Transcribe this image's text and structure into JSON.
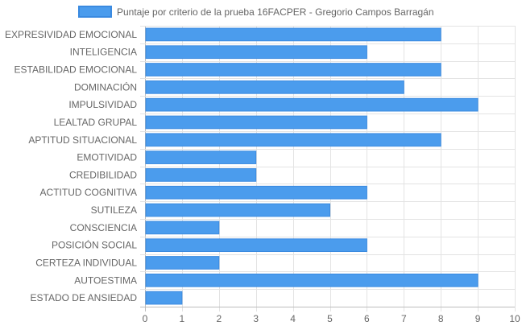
{
  "chart_data": {
    "type": "bar",
    "orientation": "horizontal",
    "legend": {
      "position": "top",
      "entries": [
        "Puntaje por criterio de la prueba 16FACPER - Gregorio Campos Barragán"
      ]
    },
    "categories": [
      "EXPRESIVIDAD EMOCIONAL",
      "INTELIGENCIA",
      "ESTABILIDAD EMOCIONAL",
      "DOMINACIÓN",
      "IMPULSIVIDAD",
      "LEALTAD GRUPAL",
      "APTITUD SITUACIONAL",
      "EMOTIVIDAD",
      "CREDIBILIDAD",
      "ACTITUD COGNITIVA",
      "SUTILEZA",
      "CONSCIENCIA",
      "POSICIÓN SOCIAL",
      "CERTEZA INDIVIDUAL",
      "AUTOESTIMA",
      "ESTADO DE ANSIEDAD"
    ],
    "series": [
      {
        "name": "Puntaje por criterio de la prueba 16FACPER - Gregorio Campos Barragán",
        "values": [
          8,
          6,
          8,
          7,
          9,
          6,
          8,
          3,
          3,
          6,
          5,
          2,
          6,
          2,
          9,
          1
        ],
        "color": "#4b9ced"
      }
    ],
    "xlim": [
      0,
      10
    ],
    "x_ticks": [
      "0",
      "1",
      "2",
      "3",
      "4",
      "5",
      "6",
      "7",
      "8",
      "9",
      "10"
    ],
    "grid": true
  },
  "colors": {
    "bar_fill": "#4b9ced",
    "bar_stroke": "#3a8ae0",
    "grid": "#e3e3e3",
    "axis": "#bdbdbd",
    "text": "#666666"
  }
}
